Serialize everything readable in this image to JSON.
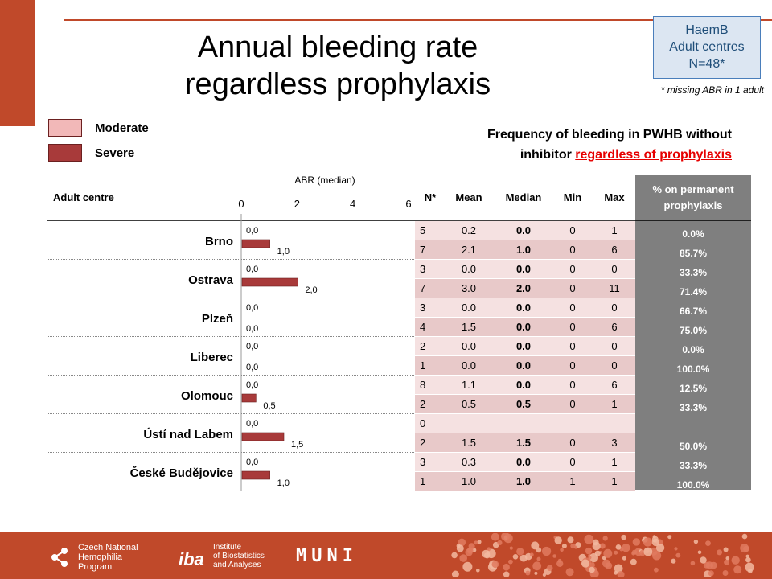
{
  "title_line1": "Annual bleeding rate",
  "title_line2": "regardless prophylaxis",
  "info_box": {
    "line1": "HaemB",
    "line2": "Adult centres",
    "line3": "N=48*"
  },
  "info_note": "* missing ABR in 1 adult",
  "legend": [
    {
      "label": "Moderate",
      "color": "#f2b8b8"
    },
    {
      "label": "Severe",
      "color": "#a83a3a"
    }
  ],
  "freq_title_line1": "Frequency of bleeding in PWHB without",
  "freq_title_line2_prefix": "inhibitor",
  "freq_title_line2_highlight": "regardless of prophylaxis",
  "headers": {
    "adult_centre": "Adult centre",
    "n": "N*",
    "mean": "Mean",
    "median": "Median",
    "min": "Min",
    "max": "Max",
    "perm_line1": "% on permanent",
    "perm_line2": "prophylaxis"
  },
  "chart_data": {
    "type": "bar",
    "orientation": "horizontal",
    "xlabel": "ABR (median)",
    "xlim": [
      0,
      6
    ],
    "xticks": [
      "0",
      "2",
      "4",
      "6"
    ],
    "categories": [
      "Brno",
      "Ostrava",
      "Plzeň",
      "Liberec",
      "Olomouc",
      "Ústí nad Labem",
      "České Budějovice"
    ],
    "series": [
      {
        "name": "Moderate",
        "values": [
          0,
          0,
          0,
          0,
          0,
          0,
          0
        ],
        "labels": [
          "0,0",
          "0,0",
          "0,0",
          "0,0",
          "0,0",
          "0,0",
          "0,0"
        ]
      },
      {
        "name": "Severe",
        "values": [
          1.0,
          2.0,
          0,
          0,
          0.5,
          1.5,
          1.0
        ],
        "labels": [
          "1,0",
          "2,0",
          "0,0",
          "0,0",
          "0,5",
          "1,5",
          "1,0"
        ]
      }
    ]
  },
  "rows": [
    {
      "centre": "Brno",
      "moderate": {
        "n": "5",
        "mean": "0.2",
        "median": "0.0",
        "min": "0",
        "max": "1",
        "perm": "0.0%"
      },
      "severe": {
        "n": "7",
        "mean": "2.1",
        "median": "1.0",
        "min": "0",
        "max": "6",
        "perm": "85.7%"
      }
    },
    {
      "centre": "Ostrava",
      "moderate": {
        "n": "3",
        "mean": "0.0",
        "median": "0.0",
        "min": "0",
        "max": "0",
        "perm": "33.3%"
      },
      "severe": {
        "n": "7",
        "mean": "3.0",
        "median": "2.0",
        "min": "0",
        "max": "11",
        "perm": "71.4%"
      }
    },
    {
      "centre": "Plzeň",
      "moderate": {
        "n": "3",
        "mean": "0.0",
        "median": "0.0",
        "min": "0",
        "max": "0",
        "perm": "66.7%"
      },
      "severe": {
        "n": "4",
        "mean": "1.5",
        "median": "0.0",
        "min": "0",
        "max": "6",
        "perm": "75.0%"
      }
    },
    {
      "centre": "Liberec",
      "moderate": {
        "n": "2",
        "mean": "0.0",
        "median": "0.0",
        "min": "0",
        "max": "0",
        "perm": "0.0%"
      },
      "severe": {
        "n": "1",
        "mean": "0.0",
        "median": "0.0",
        "min": "0",
        "max": "0",
        "perm": "100.0%"
      }
    },
    {
      "centre": "Olomouc",
      "moderate": {
        "n": "8",
        "mean": "1.1",
        "median": "0.0",
        "min": "0",
        "max": "6",
        "perm": "12.5%"
      },
      "severe": {
        "n": "2",
        "mean": "0.5",
        "median": "0.5",
        "min": "0",
        "max": "1",
        "perm": "33.3%"
      }
    },
    {
      "centre": "Ústí nad Labem",
      "moderate": {
        "n": "0",
        "mean": "",
        "median": "",
        "min": "",
        "max": "",
        "perm": ""
      },
      "severe": {
        "n": "2",
        "mean": "1.5",
        "median": "1.5",
        "min": "0",
        "max": "3",
        "perm": "50.0%"
      }
    },
    {
      "centre": "České Budějovice",
      "moderate": {
        "n": "3",
        "mean": "0.3",
        "median": "0.0",
        "min": "0",
        "max": "1",
        "perm": "33.3%"
      },
      "severe": {
        "n": "1",
        "mean": "1.0",
        "median": "1.0",
        "min": "1",
        "max": "1",
        "perm": "100.0%"
      }
    }
  ],
  "footer": {
    "logo1_line1": "Czech National",
    "logo1_line2": "Hemophilia",
    "logo1_line3": "Program",
    "iba_mark": "iba",
    "logo2_line1": "Institute",
    "logo2_line2": "of Biostatistics",
    "logo2_line3": "and Analyses",
    "muni": "MUNI"
  }
}
